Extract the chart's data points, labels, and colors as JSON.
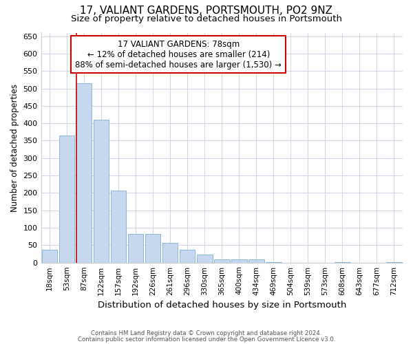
{
  "title": "17, VALIANT GARDENS, PORTSMOUTH, PO2 9NZ",
  "subtitle": "Size of property relative to detached houses in Portsmouth",
  "xlabel": "Distribution of detached houses by size in Portsmouth",
  "ylabel": "Number of detached properties",
  "categories": [
    "18sqm",
    "53sqm",
    "87sqm",
    "122sqm",
    "157sqm",
    "192sqm",
    "226sqm",
    "261sqm",
    "296sqm",
    "330sqm",
    "365sqm",
    "400sqm",
    "434sqm",
    "469sqm",
    "504sqm",
    "539sqm",
    "573sqm",
    "608sqm",
    "643sqm",
    "677sqm",
    "712sqm"
  ],
  "values": [
    37,
    365,
    515,
    410,
    207,
    83,
    83,
    57,
    37,
    23,
    10,
    10,
    10,
    2,
    0,
    0,
    0,
    2,
    0,
    0,
    2
  ],
  "bar_color": "#c5d8ef",
  "bar_edge_color": "#7aafd4",
  "vline_x_index": 1.57,
  "vline_color": "#cc0000",
  "annotation_text": "17 VALIANT GARDENS: 78sqm\n← 12% of detached houses are smaller (214)\n88% of semi-detached houses are larger (1,530) →",
  "annotation_box_color": "#ffffff",
  "annotation_box_edge": "#cc0000",
  "ylim": [
    0,
    660
  ],
  "yticks": [
    0,
    50,
    100,
    150,
    200,
    250,
    300,
    350,
    400,
    450,
    500,
    550,
    600,
    650
  ],
  "background_color": "#ffffff",
  "grid_color": "#d0d8e8",
  "footer1": "Contains HM Land Registry data © Crown copyright and database right 2024.",
  "footer2": "Contains public sector information licensed under the Open Government Licence v3.0.",
  "title_fontsize": 11,
  "subtitle_fontsize": 9.5,
  "xlabel_fontsize": 9.5,
  "ylabel_fontsize": 8.5,
  "tick_fontsize": 8,
  "xtick_fontsize": 7.5
}
